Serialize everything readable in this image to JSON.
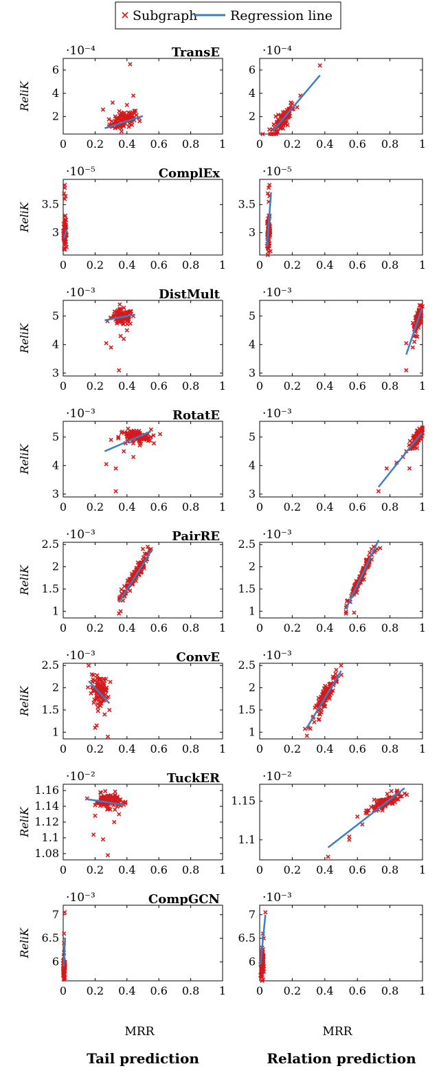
{
  "legend": {
    "subgraph_label": "Subgraph",
    "regression_label": "Regression line",
    "position": "top-center"
  },
  "columns": {
    "left_label": "Tail prediction",
    "right_label": "Relation prediction",
    "xlabel": "MRR"
  },
  "ylabel": "ReliK",
  "colors": {
    "marker": "#d7191c",
    "line": "#3a80c0",
    "axis": "#000000"
  },
  "x_ticks": [
    "0",
    "0.2",
    "0.4",
    "0.6",
    "0.8",
    "1"
  ],
  "chart_data": [
    {
      "type": "scatter",
      "title": "TransE",
      "multiplier": "·10⁻⁴",
      "ylim": [
        0.5,
        7
      ],
      "yticks": [
        {
          "v": 2,
          "l": "2"
        },
        {
          "v": 4,
          "l": "4"
        },
        {
          "v": 6,
          "l": "6"
        }
      ],
      "tail": {
        "xlim": [
          0,
          1
        ],
        "cluster": {
          "cx": 0.38,
          "cy": 1.7,
          "sx": 0.045,
          "sy": 0.35,
          "n": 90,
          "slope": 4.0
        },
        "points": [
          [
            0.42,
            6.5
          ],
          [
            0.44,
            3.8
          ],
          [
            0.31,
            3.2
          ],
          [
            0.25,
            2.6
          ],
          [
            0.3,
            1.2
          ],
          [
            0.48,
            1.6
          ],
          [
            0.4,
            3.0
          ]
        ],
        "regression": [
          [
            0.26,
            1.0
          ],
          [
            0.5,
            2.05
          ]
        ]
      },
      "relation": {
        "xlim": [
          0,
          1
        ],
        "cluster": {
          "cx": 0.14,
          "cy": 1.7,
          "sx": 0.035,
          "sy": 0.45,
          "n": 90,
          "slope": 16.0
        },
        "points": [
          [
            0.37,
            6.4
          ],
          [
            0.25,
            3.8
          ],
          [
            0.2,
            3.1
          ],
          [
            0.23,
            2.8
          ],
          [
            0.08,
            0.9
          ],
          [
            0.18,
            2.6
          ]
        ],
        "regression": [
          [
            0.08,
            0.75
          ],
          [
            0.37,
            5.55
          ]
        ]
      }
    },
    {
      "type": "scatter",
      "title": "ComplEx",
      "multiplier": "·10⁻⁵",
      "ylim": [
        2.6,
        3.95
      ],
      "yticks": [
        {
          "v": 3.0,
          "l": "3"
        },
        {
          "v": 3.5,
          "l": "3.5"
        }
      ],
      "tail": {
        "xlim": [
          0,
          1
        ],
        "cluster": {
          "cx": 0.01,
          "cy": 3.0,
          "sx": 0.004,
          "sy": 0.13,
          "n": 80,
          "slope": 0
        },
        "points": [
          [
            0.01,
            3.85
          ],
          [
            0.01,
            3.8
          ],
          [
            0.005,
            3.7
          ],
          [
            0.015,
            3.65
          ],
          [
            0.01,
            2.7
          ],
          [
            0.01,
            3.6
          ]
        ],
        "regression": [
          [
            0.005,
            2.9
          ],
          [
            0.02,
            3.05
          ]
        ]
      },
      "relation": {
        "xlim": [
          0,
          1
        ],
        "cluster": {
          "cx": 0.055,
          "cy": 3.0,
          "sx": 0.005,
          "sy": 0.13,
          "n": 80,
          "slope": 0
        },
        "points": [
          [
            0.06,
            3.85
          ],
          [
            0.055,
            3.8
          ],
          [
            0.05,
            3.7
          ],
          [
            0.06,
            3.65
          ],
          [
            0.05,
            2.75
          ],
          [
            0.055,
            3.55
          ]
        ],
        "regression": [
          [
            0.045,
            2.75
          ],
          [
            0.07,
            3.72
          ]
        ]
      }
    },
    {
      "type": "scatter",
      "title": "DistMult",
      "multiplier": "·10⁻³",
      "ylim": [
        2.9,
        5.55
      ],
      "yticks": [
        {
          "v": 3,
          "l": "3"
        },
        {
          "v": 4,
          "l": "4"
        },
        {
          "v": 5,
          "l": "5"
        }
      ],
      "tail": {
        "xlim": [
          0,
          1
        ],
        "cluster": {
          "cx": 0.37,
          "cy": 4.95,
          "sx": 0.035,
          "sy": 0.14,
          "n": 100,
          "slope": 0
        },
        "points": [
          [
            0.35,
            3.1
          ],
          [
            0.3,
            3.9
          ],
          [
            0.27,
            4.05
          ],
          [
            0.38,
            4.2
          ],
          [
            0.36,
            4.3
          ],
          [
            0.44,
            5.0
          ],
          [
            0.4,
            4.5
          ]
        ],
        "regression": [
          [
            0.26,
            4.85
          ],
          [
            0.45,
            5.05
          ]
        ]
      },
      "relation": {
        "xlim": [
          0,
          1
        ],
        "cluster": {
          "cx": 0.975,
          "cy": 4.95,
          "sx": 0.012,
          "sy": 0.15,
          "n": 90,
          "slope": 10
        },
        "points": [
          [
            0.9,
            3.1
          ],
          [
            0.9,
            4.05
          ],
          [
            0.94,
            3.9
          ],
          [
            0.96,
            4.3
          ],
          [
            0.95,
            4.1
          ]
        ],
        "regression": [
          [
            0.9,
            3.65
          ],
          [
            0.995,
            5.25
          ]
        ]
      }
    },
    {
      "type": "scatter",
      "title": "RotatE",
      "multiplier": "·10⁻³",
      "ylim": [
        2.9,
        5.55
      ],
      "yticks": [
        {
          "v": 3,
          "l": "3"
        },
        {
          "v": 4,
          "l": "4"
        },
        {
          "v": 5,
          "l": "5"
        }
      ],
      "tail": {
        "xlim": [
          0,
          1
        ],
        "cluster": {
          "cx": 0.45,
          "cy": 5.0,
          "sx": 0.05,
          "sy": 0.13,
          "n": 100,
          "slope": 0
        },
        "points": [
          [
            0.33,
            3.1
          ],
          [
            0.27,
            4.05
          ],
          [
            0.33,
            3.9
          ],
          [
            0.44,
            4.3
          ],
          [
            0.38,
            4.5
          ],
          [
            0.3,
            4.9
          ],
          [
            0.55,
            5.0
          ]
        ],
        "regression": [
          [
            0.26,
            4.5
          ],
          [
            0.55,
            5.2
          ]
        ]
      },
      "relation": {
        "xlim": [
          0,
          1
        ],
        "cluster": {
          "cx": 0.97,
          "cy": 5.0,
          "sx": 0.018,
          "sy": 0.13,
          "n": 90,
          "slope": 6
        },
        "points": [
          [
            0.73,
            3.1
          ],
          [
            0.78,
            3.9
          ],
          [
            0.84,
            4.1
          ],
          [
            0.88,
            4.3
          ],
          [
            0.92,
            3.9
          ],
          [
            0.9,
            4.5
          ]
        ],
        "regression": [
          [
            0.73,
            3.25
          ],
          [
            0.995,
            5.15
          ]
        ]
      }
    },
    {
      "type": "scatter",
      "title": "PairRE",
      "multiplier": "·10⁻³",
      "ylim": [
        0.85,
        2.55
      ],
      "yticks": [
        {
          "v": 1,
          "l": "1"
        },
        {
          "v": 1.5,
          "l": "1.5"
        },
        {
          "v": 2,
          "l": "2"
        },
        {
          "v": 2.5,
          "l": "2.5"
        }
      ],
      "tail": {
        "xlim": [
          0,
          1
        ],
        "cluster": {
          "cx": 0.44,
          "cy": 1.75,
          "sx": 0.045,
          "sy": 0.08,
          "n": 110,
          "slope": 5.5
        },
        "points": [
          [
            0.35,
            0.95
          ],
          [
            0.36,
            1.0
          ],
          [
            0.5,
            2.4
          ],
          [
            0.53,
            2.45
          ],
          [
            0.55,
            2.4
          ]
        ],
        "regression": [
          [
            0.35,
            1.2
          ],
          [
            0.56,
            2.4
          ]
        ]
      },
      "relation": {
        "xlim": [
          0,
          1
        ],
        "cluster": {
          "cx": 0.62,
          "cy": 1.75,
          "sx": 0.04,
          "sy": 0.07,
          "n": 110,
          "slope": 7.5
        },
        "points": [
          [
            0.53,
            0.95
          ],
          [
            0.58,
            0.97
          ],
          [
            0.72,
            2.4
          ],
          [
            0.74,
            2.42
          ],
          [
            0.7,
            2.45
          ]
        ],
        "regression": [
          [
            0.53,
            1.05
          ],
          [
            0.73,
            2.6
          ]
        ]
      }
    },
    {
      "type": "scatter",
      "title": "ConvE",
      "multiplier": "·10⁻³",
      "ylim": [
        0.85,
        2.55
      ],
      "yticks": [
        {
          "v": 1,
          "l": "1"
        },
        {
          "v": 1.5,
          "l": "1.5"
        },
        {
          "v": 2,
          "l": "2"
        },
        {
          "v": 2.5,
          "l": "2.5"
        }
      ],
      "tail": {
        "xlim": [
          0,
          1
        ],
        "cluster": {
          "cx": 0.23,
          "cy": 1.95,
          "sx": 0.025,
          "sy": 0.15,
          "n": 110,
          "slope": 0
        },
        "points": [
          [
            0.16,
            2.5
          ],
          [
            0.28,
            0.9
          ],
          [
            0.2,
            1.1
          ],
          [
            0.21,
            1.15
          ],
          [
            0.26,
            1.4
          ],
          [
            0.29,
            1.5
          ],
          [
            0.18,
            2.3
          ]
        ],
        "regression": [
          [
            0.16,
            2.15
          ],
          [
            0.29,
            1.65
          ]
        ]
      },
      "relation": {
        "xlim": [
          0,
          1
        ],
        "cluster": {
          "cx": 0.41,
          "cy": 1.85,
          "sx": 0.035,
          "sy": 0.1,
          "n": 110,
          "slope": 6
        },
        "points": [
          [
            0.29,
            0.92
          ],
          [
            0.3,
            1.1
          ],
          [
            0.33,
            1.35
          ],
          [
            0.5,
            2.5
          ],
          [
            0.47,
            2.4
          ]
        ],
        "regression": [
          [
            0.29,
            1.1
          ],
          [
            0.5,
            2.38
          ]
        ]
      }
    },
    {
      "type": "scatter",
      "title": "TuckER",
      "multiplier": "·10⁻²",
      "ylim": [
        1.072,
        1.168
      ],
      "yticks": [
        {
          "v": 1.08,
          "l": "1.08"
        },
        {
          "v": 1.1,
          "l": "1.1"
        },
        {
          "v": 1.12,
          "l": "1.12"
        },
        {
          "v": 1.14,
          "l": "1.14"
        },
        {
          "v": 1.16,
          "l": "1.16"
        }
      ],
      "tail": {
        "xlim": [
          0,
          1
        ],
        "cluster": {
          "cx": 0.28,
          "cy": 1.147,
          "sx": 0.04,
          "sy": 0.0045,
          "n": 110,
          "slope": 0
        },
        "points": [
          [
            0.28,
            1.078
          ],
          [
            0.25,
            1.098
          ],
          [
            0.19,
            1.104
          ],
          [
            0.2,
            1.128
          ],
          [
            0.32,
            1.12
          ],
          [
            0.38,
            1.142
          ],
          [
            0.15,
            1.15
          ],
          [
            0.35,
            1.13
          ]
        ],
        "regression": [
          [
            0.15,
            1.149
          ],
          [
            0.38,
            1.142
          ]
        ]
      },
      "relation": {
        "xlim": [
          0,
          1
        ],
        "ylim": [
          1.074,
          1.172
        ],
        "yticks": [
          {
            "v": 1.1,
            "l": "1.1"
          },
          {
            "v": 1.15,
            "l": "1.15"
          }
        ],
        "cluster": {
          "cx": 0.77,
          "cy": 1.148,
          "sx": 0.045,
          "sy": 0.004,
          "n": 110,
          "slope": 0.09
        },
        "points": [
          [
            0.42,
            1.078
          ],
          [
            0.55,
            1.1
          ],
          [
            0.55,
            1.104
          ],
          [
            0.6,
            1.13
          ],
          [
            0.63,
            1.12
          ],
          [
            0.89,
            1.16
          ]
        ],
        "regression": [
          [
            0.42,
            1.09
          ],
          [
            0.89,
            1.167
          ]
        ]
      }
    },
    {
      "type": "scatter",
      "title": "CompGCN",
      "multiplier": "·10⁻³",
      "ylim": [
        5.6,
        7.2
      ],
      "yticks": [
        {
          "v": 6,
          "l": "6"
        },
        {
          "v": 6.5,
          "l": "6.5"
        },
        {
          "v": 7,
          "l": "7"
        }
      ],
      "tail": {
        "xlim": [
          0,
          1
        ],
        "cluster": {
          "cx": 0.005,
          "cy": 5.85,
          "sx": 0.003,
          "sy": 0.1,
          "n": 80,
          "slope": 0
        },
        "points": [
          [
            0.01,
            7.05
          ],
          [
            0.005,
            6.6
          ],
          [
            0.005,
            6.4
          ],
          [
            0.005,
            6.2
          ]
        ],
        "regression": [
          [
            0.003,
            5.9
          ],
          [
            0.012,
            6.5
          ]
        ]
      },
      "relation": {
        "xlim": [
          0,
          1
        ],
        "cluster": {
          "cx": 0.015,
          "cy": 5.95,
          "sx": 0.004,
          "sy": 0.15,
          "n": 80,
          "slope": 0
        },
        "points": [
          [
            0.035,
            7.05
          ],
          [
            0.02,
            6.6
          ],
          [
            0.025,
            6.5
          ],
          [
            0.015,
            6.3
          ]
        ],
        "regression": [
          [
            0.005,
            5.95
          ],
          [
            0.035,
            7.0
          ]
        ]
      }
    }
  ]
}
